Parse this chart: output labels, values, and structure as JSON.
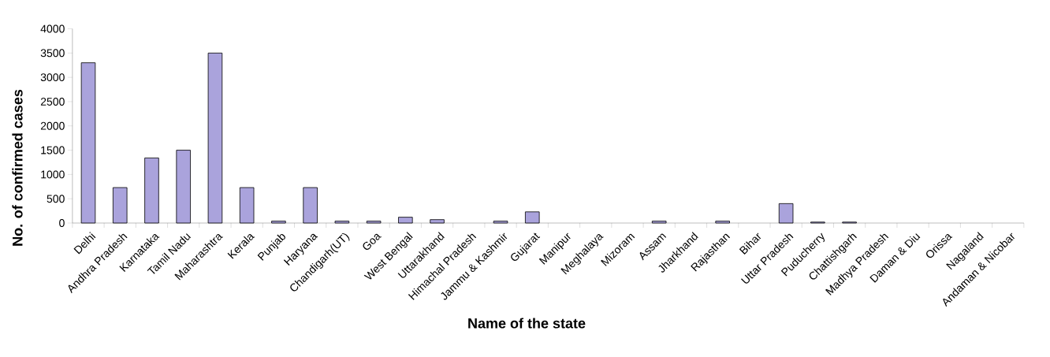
{
  "chart_data": {
    "type": "bar",
    "xlabel": "Name of the state",
    "ylabel": "No. of confirmed cases",
    "categories": [
      "Delhi",
      "Andhra Pradesh",
      "Karnataka",
      "Tamil Nadu",
      "Maharashtra",
      "Kerala",
      "Punjab",
      "Haryana",
      "Chandigarh(UT)",
      "Goa",
      "West Bengal",
      "Uttarakhand",
      "Himachal Pradesh",
      "Jammu & Kashmir",
      "Gujarat",
      "Manipur",
      "Meghalaya",
      "Mizoram",
      "Assam",
      "Jharkhand",
      "Rajasthan",
      "Bihar",
      "Uttar Pradesh",
      "Puducherry",
      "Chattishgarh",
      "Madhya Pradesh",
      "Daman & Diu",
      "Orissa",
      "Nagaland",
      "Andaman & Nicobar"
    ],
    "values": [
      3300,
      730,
      1340,
      1500,
      3500,
      730,
      40,
      730,
      40,
      40,
      120,
      70,
      0,
      40,
      230,
      0,
      0,
      0,
      40,
      0,
      40,
      0,
      400,
      20,
      20,
      0,
      0,
      0,
      0,
      0
    ],
    "color": "#aaa3dc",
    "ylim": [
      0,
      4000
    ],
    "yticks": [
      0,
      500,
      1000,
      1500,
      2000,
      2500,
      3000,
      3500,
      4000
    ]
  }
}
